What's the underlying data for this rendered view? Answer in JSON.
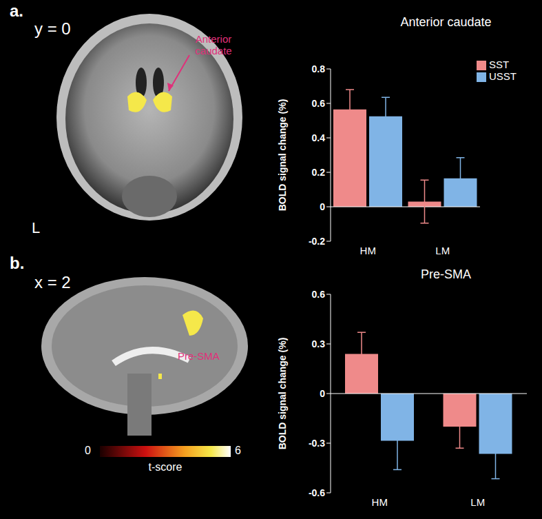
{
  "chart_data": [
    {
      "type": "bar",
      "panel": "a.",
      "title": "Anterior caudate",
      "ylabel": "BOLD signal change (%)",
      "categories": [
        "HM",
        "LM"
      ],
      "series": [
        {
          "name": "SST",
          "color": "#ef8a8a",
          "values": [
            0.565,
            0.03
          ],
          "errors": [
            0.115,
            0.125
          ]
        },
        {
          "name": "USST",
          "color": "#80b4e6",
          "values": [
            0.525,
            0.165
          ],
          "errors": [
            0.11,
            0.12
          ]
        }
      ],
      "ylim": [
        -0.2,
        0.8
      ],
      "yticks": [
        -0.2,
        0,
        0.2,
        0.4,
        0.6,
        0.8
      ],
      "legend": "upper right"
    },
    {
      "type": "bar",
      "panel": "b.",
      "title": "Pre-SMA",
      "ylabel": "BOLD signal change (%)",
      "categories": [
        "HM",
        "LM"
      ],
      "series": [
        {
          "color": "#ef8a8a",
          "values": [
            0.24,
            -0.2
          ],
          "errors": [
            0.13,
            0.13
          ]
        },
        {
          "color": "#80b4e6",
          "values": [
            -0.285,
            -0.365
          ],
          "errors": [
            0.175,
            0.15
          ]
        }
      ],
      "ylim": [
        -0.6,
        0.6
      ],
      "yticks": [
        -0.6,
        -0.3,
        0,
        0.3,
        0.6
      ]
    }
  ],
  "brain_images": [
    {
      "panel": "a.",
      "coordinate": "y = 0",
      "annotation": "Anterior caudate",
      "side_label": "L"
    },
    {
      "panel": "b.",
      "coordinate": "x = 2",
      "annotation": "Pre-SMA"
    }
  ],
  "colorbar": {
    "label": "t-score",
    "range": [
      0,
      6
    ],
    "ticks": [
      0,
      6
    ]
  }
}
